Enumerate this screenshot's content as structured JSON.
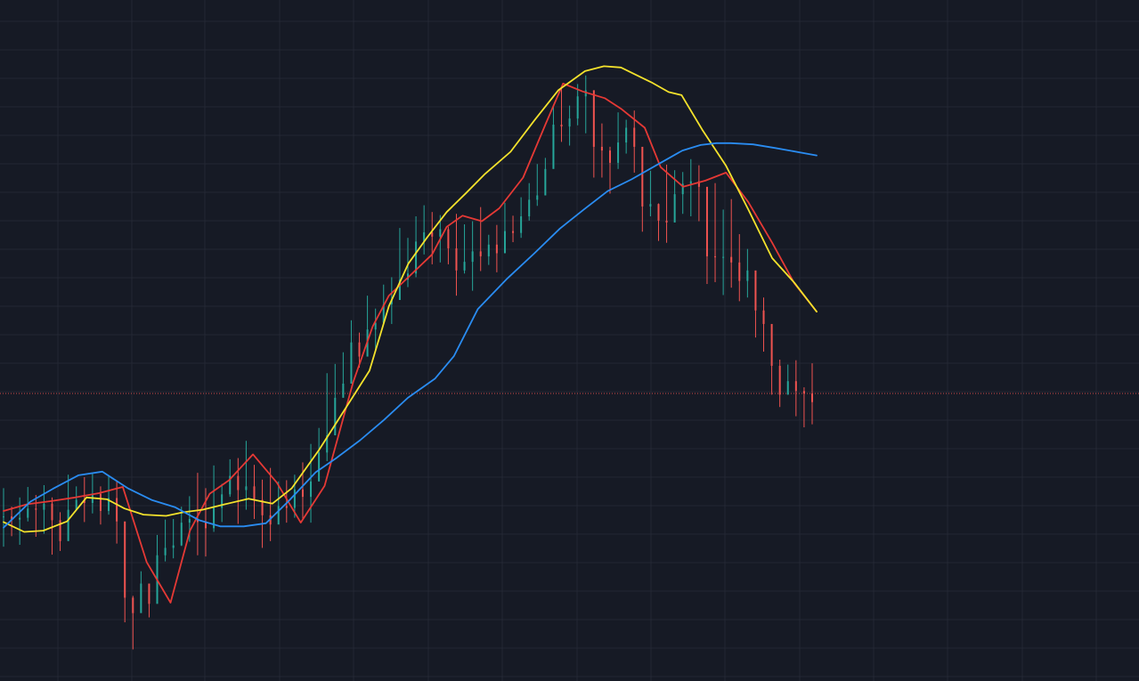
{
  "chart": {
    "colors": {
      "background": "#161a25",
      "grid": "#232733",
      "candle_up": "#26a69a",
      "candle_down": "#ef5350",
      "price_line": "#ef5350"
    }
  },
  "chart_data": {
    "type": "line",
    "xlim": [
      0,
      200
    ],
    "ylim": [
      0,
      100
    ],
    "grid": true,
    "legend": "none",
    "price_line_value": 42.4,
    "candles": {
      "x": [
        0,
        2,
        4,
        6,
        8,
        10,
        12,
        14,
        16,
        18,
        20,
        22,
        24,
        26,
        28,
        30,
        32,
        34,
        36,
        38,
        40,
        42,
        44,
        46,
        48,
        50,
        52,
        54,
        56,
        58,
        60,
        62,
        64,
        66,
        68,
        70,
        72,
        74,
        76,
        78,
        80,
        82,
        84,
        86,
        88,
        90,
        92,
        94,
        96,
        98,
        100,
        102,
        104,
        106,
        108,
        110,
        112,
        114,
        116,
        118,
        120,
        122,
        124,
        126,
        128,
        130,
        132,
        134,
        136,
        138,
        140,
        142,
        144,
        146,
        148,
        150,
        152,
        154,
        156,
        158,
        160,
        162,
        164,
        166,
        168,
        170,
        172,
        174,
        176,
        178,
        180,
        182,
        184,
        186,
        188,
        190,
        192,
        194,
        196,
        198,
        200
      ],
      "values": [
        22.4,
        21.9,
        22.2,
        23.7,
        23.5,
        24.5,
        21.8,
        18.4,
        23.5,
        25.1,
        24.6,
        26.1,
        23.3,
        25.4,
        21.6,
        9.2,
        6.7,
        11.5,
        8.2,
        16.1,
        17.3,
        17.7,
        21.4,
        22.0,
        21.5,
        20.5,
        23.8,
        26.0,
        29.0,
        26.7,
        27.3,
        25.1,
        22.6,
        21.1,
        24.1,
        23.8,
        26.8,
        25.6,
        28.1,
        32.8,
        35.6,
        41.7,
        44.0,
        50.7,
        48.4,
        52.8,
        53.9,
        56.9,
        57.6,
        60.9,
        61.9,
        67.1,
        68.6,
        67.9,
        69.1,
        66.0,
        62.4,
        63.8,
        65.5,
        64.7,
        66.6,
        65.2,
        68.8,
        68.5,
        71.2,
        73.9,
        74.6,
        78.9,
        86.1,
        85.8,
        87.1,
        90.7,
        91.7,
        82.5,
        81.9,
        79.9,
        83.2,
        85.6,
        82.5,
        72.8,
        73.2,
        70.5,
        70.2,
        74.8,
        76.5,
        76.9,
        76.0,
        64.7,
        64.6,
        64.6,
        63.7,
        60.7,
        62.4,
        55.9,
        53.7,
        46.9,
        42.2,
        44.4,
        42.8,
        42.4,
        41.0
      ],
      "highs": [
        27,
        24,
        25.5,
        27.2,
        25.9,
        27.5,
        25.5,
        23.1,
        29.2,
        27.3,
        28.8,
        29.4,
        27.3,
        29.1,
        28.2,
        10.7,
        9.5,
        13.5,
        10,
        19.4,
        21.9,
        22,
        24,
        25.7,
        29.5,
        27,
        30.7,
        27.7,
        31.7,
        31.9,
        34.7,
        30.8,
        28.4,
        30.3,
        28.1,
        28.3,
        29.2,
        31.2,
        34.2,
        36.8,
        45.7,
        47.2,
        49.1,
        54.3,
        52.3,
        58.3,
        56.2,
        60.1,
        61.3,
        69.3,
        67.7,
        71.2,
        73,
        71.9,
        71.4,
        69.5,
        71.6,
        69.9,
        70.4,
        72.7,
        68.2,
        69.8,
        73.4,
        71.3,
        74.3,
        76.6,
        79.7,
        80.7,
        89.3,
        92,
        89.2,
        92.7,
        94.1,
        87.5,
        86.3,
        82.5,
        88.1,
        86.9,
        88.4,
        80.1,
        78.6,
        73.3,
        79.6,
        78.7,
        78.4,
        80.5,
        79.5,
        69.5,
        76.6,
        72.3,
        74,
        68.3,
        65.9,
        59.1,
        58,
        51,
        47.9,
        47.1,
        47.8,
        43.4,
        47.3
      ],
      "lows": [
        17.5,
        19.2,
        17.8,
        21.6,
        19.1,
        19.6,
        16.2,
        16.8,
        21.7,
        23.8,
        21.5,
        22.9,
        21.1,
        22.7,
        18,
        5.2,
        0.8,
        10.2,
        6,
        13.5,
        15.1,
        15.6,
        17.6,
        18.3,
        16.1,
        15.9,
        19.9,
        21.5,
        25.6,
        21.2,
        23.5,
        22,
        17.3,
        18.4,
        21.4,
        21.4,
        22.2,
        21.8,
        21.4,
        28.6,
        31.4,
        39.1,
        41.8,
        45.7,
        46.6,
        50.2,
        49.3,
        53.7,
        53.7,
        59,
        59.7,
        61.3,
        65,
        63.4,
        63.7,
        63.4,
        58.3,
        61.9,
        59.1,
        62.3,
        63.3,
        62.1,
        65.7,
        67,
        67.7,
        70.5,
        72.9,
        75.6,
        84.2,
        83.3,
        82.7,
        86,
        84.7,
        77.5,
        77.5,
        74.9,
        78.9,
        81.4,
        78.3,
        68.7,
        71.2,
        67.2,
        66.9,
        72.5,
        71.6,
        71.2,
        70.4,
        60.2,
        60.5,
        58.4,
        59.6,
        57.4,
        58,
        51.5,
        49.2,
        42.2,
        40.2,
        42.7,
        38.7,
        36.9,
        37.4
      ]
    },
    "series": [
      {
        "color": "#e53935",
        "x": [
          0,
          5.9,
          11.8,
          17.7,
          23.6,
          29.5,
          35.4,
          41.3,
          46.1,
          51,
          55.8,
          61.7,
          67.6,
          73.5,
          79.4,
          86.5,
          91.3,
          95.3,
          100.1,
          106,
          109.6,
          113.5,
          118.3,
          122.6,
          128.5,
          134,
          138.4,
          143.2,
          148.7,
          152.7,
          158.6,
          162.5,
          168.1,
          173.6,
          178.7,
          184.2,
          190.1,
          195.6,
          201.1
        ],
        "values": [
          23.3,
          24.4,
          24.9,
          25.5,
          26.2,
          27.2,
          15,
          8.4,
          20.1,
          26.1,
          28.3,
          32.5,
          27.9,
          21.4,
          27.4,
          44.3,
          53.3,
          58.3,
          61.3,
          65,
          69.5,
          71.3,
          70.4,
          72.5,
          77.5,
          86.1,
          92.8,
          91.5,
          90.4,
          88.7,
          85.6,
          79.2,
          76,
          77,
          78.3,
          73.5,
          66.9,
          60.3,
          55.7
        ]
      },
      {
        "color": "#f4e22c",
        "x": [
          0,
          5.1,
          9.8,
          15.7,
          20.5,
          25.6,
          29.9,
          34.6,
          40.2,
          44.5,
          49.2,
          54.8,
          60.6,
          66.5,
          71.3,
          78,
          84.2,
          90.5,
          95.3,
          100.1,
          104.8,
          109.6,
          114.4,
          119.1,
          125.4,
          131.3,
          137.2,
          143.8,
          148.5,
          152.7,
          156.4,
          160.2,
          164.5,
          167.7,
          172.8,
          178.7,
          184.2,
          190.1,
          195.6,
          201.1
        ],
        "values": [
          21.5,
          19.9,
          20.1,
          21.6,
          25.5,
          25.2,
          23.7,
          22.7,
          22.5,
          23.1,
          23.5,
          24.4,
          25.3,
          24.5,
          27,
          33.2,
          39.6,
          46.1,
          56.6,
          63.5,
          67.8,
          71.9,
          75,
          78.1,
          81.7,
          86.8,
          91.7,
          94.8,
          95.6,
          95.4,
          94.2,
          93,
          91.4,
          90.9,
          85.3,
          79.4,
          72.3,
          64.4,
          60.4,
          55.7
        ]
      },
      {
        "color": "#2a8cf1",
        "x": [
          0,
          6.6,
          12.2,
          18.5,
          24.4,
          30.7,
          36.6,
          42.5,
          48.4,
          53.6,
          59.4,
          64.9,
          70.5,
          77.2,
          82.3,
          88.2,
          94.1,
          100,
          106.7,
          111.4,
          117.3,
          124.6,
          131.3,
          137.6,
          143.5,
          149.4,
          155.3,
          161.2,
          167.9,
          172.4,
          176.3,
          179.9,
          185.4,
          190.9,
          201.1
        ],
        "values": [
          20.6,
          24.8,
          26.9,
          29.1,
          29.7,
          27,
          25.1,
          23.9,
          21.8,
          20.8,
          20.8,
          21.3,
          24.9,
          29.6,
          31.9,
          34.8,
          38.1,
          41.7,
          44.8,
          48.5,
          56.1,
          61.1,
          65.2,
          69.2,
          72.3,
          75.3,
          77.2,
          79.4,
          81.9,
          82.8,
          83.1,
          83.1,
          82.9,
          82.3,
          81.1
        ]
      }
    ]
  }
}
